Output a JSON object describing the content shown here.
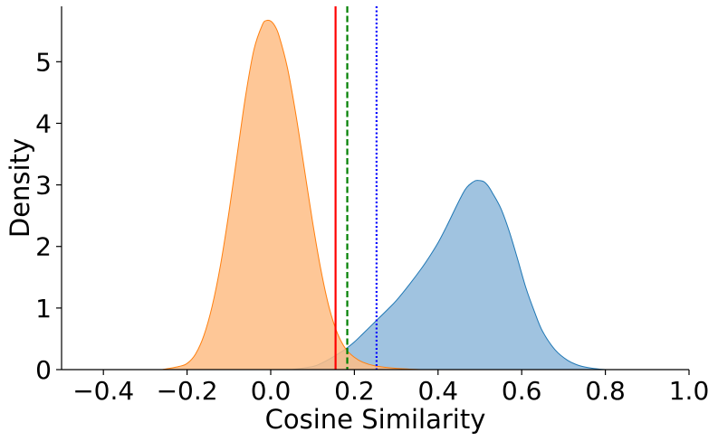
{
  "chart_data": {
    "type": "area",
    "title": "",
    "xlabel": "Cosine Similarity",
    "ylabel": "Density",
    "xlim": [
      -0.5,
      1.0
    ],
    "ylim": [
      0,
      5.9
    ],
    "grid": false,
    "legend": "none",
    "x_ticks": [
      {
        "value": -0.4,
        "label": "−0.4"
      },
      {
        "value": -0.2,
        "label": "−0.2"
      },
      {
        "value": 0.0,
        "label": "0.0"
      },
      {
        "value": 0.2,
        "label": "0.2"
      },
      {
        "value": 0.4,
        "label": "0.4"
      },
      {
        "value": 0.6,
        "label": "0.6"
      },
      {
        "value": 0.8,
        "label": "0.8"
      },
      {
        "value": 1.0,
        "label": "1.0"
      }
    ],
    "y_ticks": [
      {
        "value": 0,
        "label": "0"
      },
      {
        "value": 1,
        "label": "1"
      },
      {
        "value": 2,
        "label": "2"
      },
      {
        "value": 3,
        "label": "3"
      },
      {
        "value": 4,
        "label": "4"
      },
      {
        "value": 5,
        "label": "5"
      }
    ],
    "series": [
      {
        "fill": "#8fb9da",
        "stroke": "#1f77b4",
        "x": [
          0.05,
          0.1,
          0.12,
          0.14,
          0.16,
          0.18,
          0.2,
          0.22,
          0.25,
          0.28,
          0.3,
          0.33,
          0.36,
          0.38,
          0.4,
          0.42,
          0.44,
          0.46,
          0.47,
          0.48,
          0.49,
          0.5,
          0.51,
          0.52,
          0.53,
          0.55,
          0.57,
          0.59,
          0.61,
          0.63,
          0.65,
          0.68,
          0.71,
          0.74,
          0.77,
          0.8
        ],
        "y": [
          0.0,
          0.05,
          0.1,
          0.17,
          0.25,
          0.34,
          0.45,
          0.58,
          0.78,
          0.98,
          1.12,
          1.37,
          1.64,
          1.84,
          2.06,
          2.32,
          2.6,
          2.87,
          2.97,
          3.03,
          3.07,
          3.07,
          3.05,
          2.98,
          2.87,
          2.62,
          2.25,
          1.8,
          1.33,
          0.95,
          0.62,
          0.32,
          0.15,
          0.06,
          0.02,
          0.0
        ]
      },
      {
        "fill": "#febd85",
        "stroke": "#ff7f0e",
        "x": [
          -0.26,
          -0.22,
          -0.2,
          -0.18,
          -0.16,
          -0.14,
          -0.12,
          -0.1,
          -0.08,
          -0.06,
          -0.04,
          -0.02,
          -0.01,
          0.0,
          0.01,
          0.02,
          0.04,
          0.06,
          0.08,
          0.1,
          0.12,
          0.14,
          0.16,
          0.18,
          0.2,
          0.22,
          0.25,
          0.3,
          0.36
        ],
        "y": [
          0.0,
          0.05,
          0.1,
          0.25,
          0.55,
          1.03,
          1.7,
          2.55,
          3.5,
          4.45,
          5.2,
          5.6,
          5.67,
          5.66,
          5.58,
          5.42,
          4.9,
          4.15,
          3.28,
          2.4,
          1.62,
          1.0,
          0.58,
          0.33,
          0.2,
          0.12,
          0.06,
          0.02,
          0.0
        ]
      }
    ],
    "vlines": [
      {
        "x": 0.155,
        "color": "#ff0000",
        "style": "solid"
      },
      {
        "x": 0.183,
        "color": "#008000",
        "style": "dashed"
      },
      {
        "x": 0.253,
        "color": "#0000ff",
        "style": "dotted"
      }
    ]
  }
}
